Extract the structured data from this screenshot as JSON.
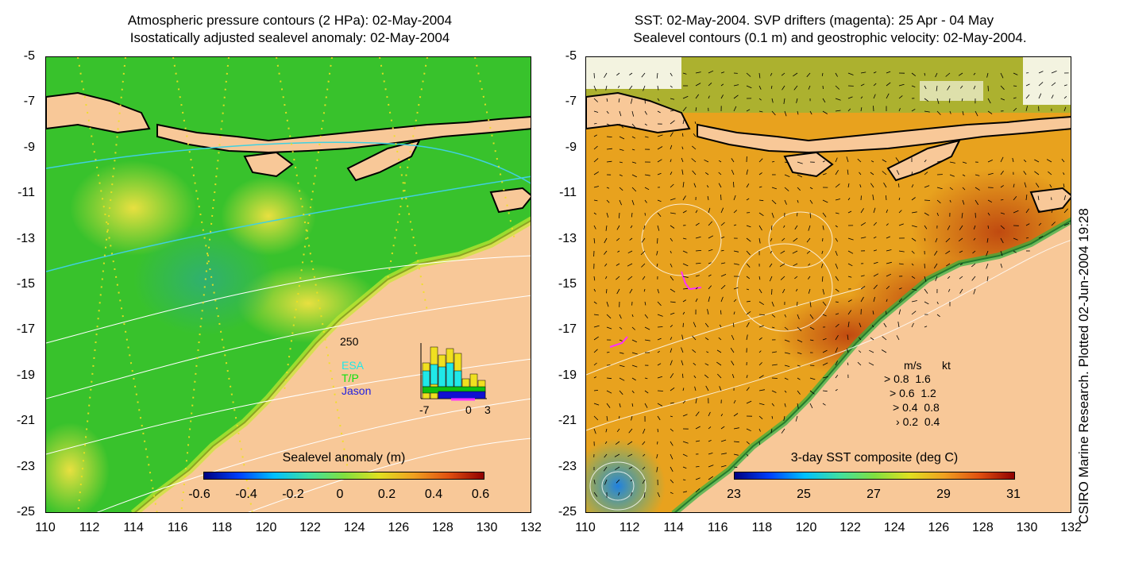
{
  "left_panel": {
    "title_line1": "Atmospheric pressure contours (2 HPa): 02-May-2004",
    "title_line2": "Isostatically adjusted sealevel anomaly: 02-May-2004",
    "colorbar": {
      "label": "Sealevel anomaly (m)",
      "ticks": [
        "-0.6",
        "-0.4",
        "-0.2",
        "0",
        "0.2",
        "0.4",
        "0.6"
      ],
      "range": [
        -0.6,
        0.6
      ]
    },
    "inset_histogram": {
      "ymax_label": "250",
      "series_labels": [
        "ESA",
        "T/P",
        "Jason"
      ],
      "x_ticks": [
        "-7",
        "0",
        "3"
      ],
      "colors": {
        "yellow": "#f0e020",
        "cyan": "#20e8e8",
        "green": "#10c010",
        "blue": "#1010d0",
        "magenta": "#ff30ff"
      }
    }
  },
  "right_panel": {
    "title_line1": "SST: 02-May-2004. SVP drifters (magenta): 25 Apr - 04 May",
    "title_line2": "Sealevel contours (0.1 m) and geostrophic velocity: 02-May-2004.",
    "colorbar": {
      "label": "3-day SST composite (deg C)",
      "ticks": [
        "23",
        "25",
        "27",
        "29",
        "31"
      ],
      "range": [
        23,
        31
      ]
    },
    "velocity_legend": {
      "header_ms": "m/s",
      "header_kt": "kt",
      "rows": [
        {
          "ms": "0.8",
          "kt": "1.6"
        },
        {
          "ms": "0.6",
          "kt": "1.2"
        },
        {
          "ms": "0.4",
          "kt": "0.8"
        },
        {
          "ms": "0.2",
          "kt": "0.4"
        }
      ]
    }
  },
  "axes": {
    "y_ticks": [
      "-5",
      "-7",
      "-9",
      "-11",
      "-13",
      "-15",
      "-17",
      "-19",
      "-21",
      "-23",
      "-25"
    ],
    "x_ticks": [
      "110",
      "112",
      "114",
      "116",
      "118",
      "120",
      "122",
      "124",
      "126",
      "128",
      "130",
      "132"
    ],
    "lat_range": [
      -25,
      -5
    ],
    "lon_range": [
      110,
      132
    ]
  },
  "credit": "CSIRO Marine Research. Plotted 02-Jun-2004 19:28",
  "colors": {
    "land": "#f8c898",
    "coast": "#000000",
    "sla_green": "#38c22c",
    "sla_yellow": "#c8e830",
    "sst_orange": "#e8a21e",
    "sst_red": "#c85010"
  }
}
